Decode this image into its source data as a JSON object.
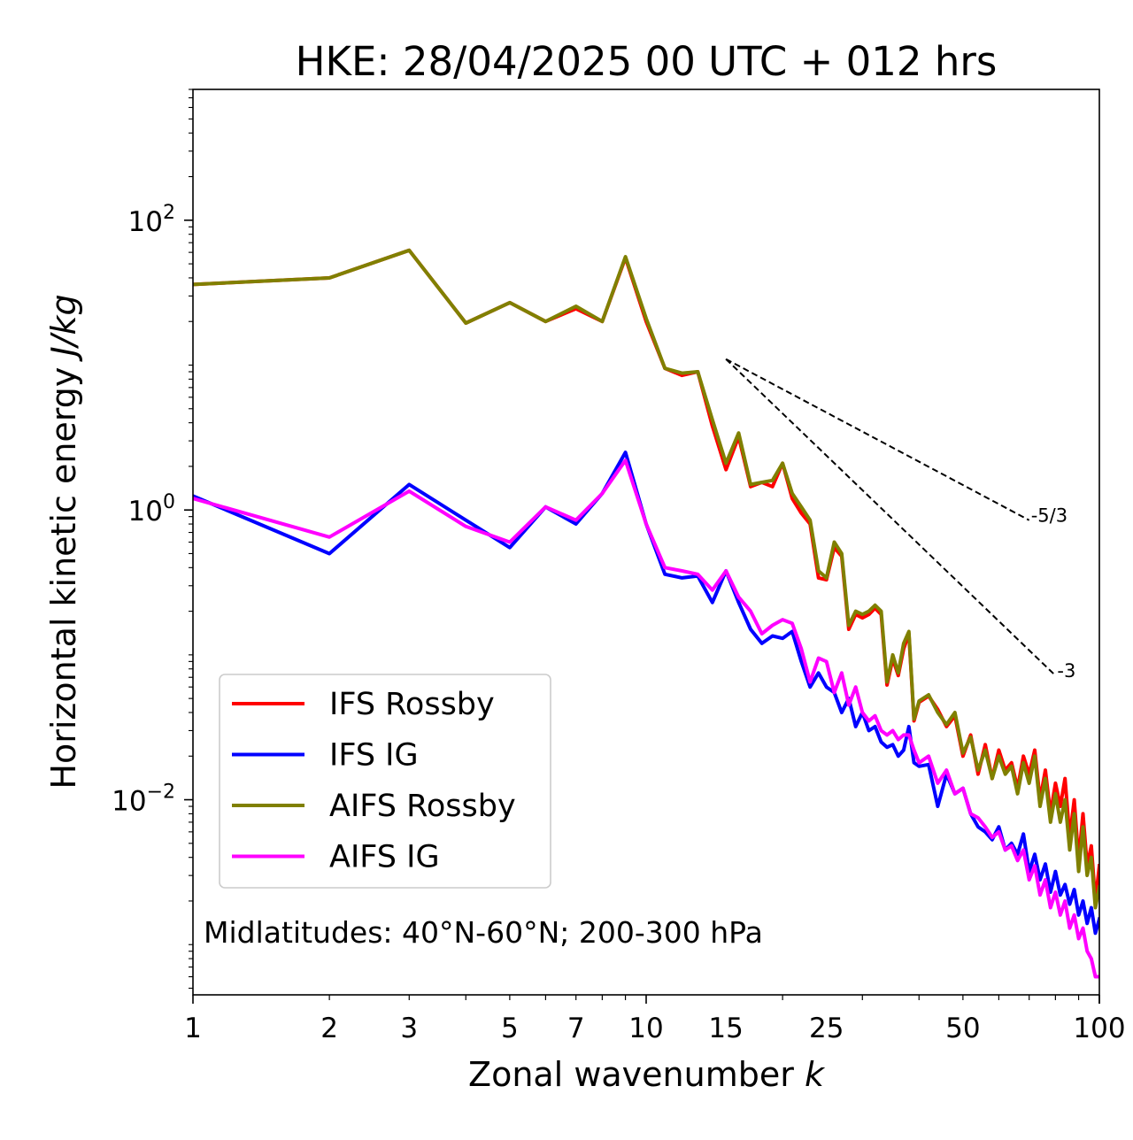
{
  "chart_data": {
    "type": "line",
    "title": "HKE: 28/04/2025 00 UTC + 012 hrs",
    "xlabel": "Zonal wavenumber",
    "xlabel_var": "k",
    "ylabel": "Horizontal kinetic energy",
    "ylabel_unit": "J/kg",
    "xscale": "log",
    "yscale": "log",
    "xlim": [
      1,
      100
    ],
    "ylim": [
      0.00045,
      800
    ],
    "x_ticks": [
      1,
      2,
      3,
      5,
      7,
      10,
      15,
      25,
      50,
      100
    ],
    "x_tick_labels": [
      "1",
      "2",
      "3",
      "5",
      "7",
      "10",
      "15",
      "25",
      "50",
      "100"
    ],
    "y_ticks": [
      {
        "value": 0.01,
        "base": "10",
        "exp": "−2"
      },
      {
        "value": 1,
        "base": "10",
        "exp": "0"
      },
      {
        "value": 100,
        "base": "10",
        "exp": "2"
      }
    ],
    "legend": {
      "position": "lower-left"
    },
    "grid": false,
    "annotation": "Midlatitudes: 40°N-60°N; 200-300 hPa",
    "reference_lines": [
      {
        "label": "-5/3",
        "x": [
          15,
          70
        ],
        "y": [
          11.0,
          0.85
        ]
      },
      {
        "label": "-3",
        "x": [
          15,
          80
        ],
        "y": [
          11.0,
          0.072
        ]
      }
    ],
    "series": [
      {
        "name": "IFS Rossby",
        "color": "#ff0000",
        "x": [
          1,
          2,
          3,
          4,
          5,
          6,
          7,
          8,
          9,
          10,
          11,
          12,
          13,
          14,
          15,
          16,
          17,
          18,
          19,
          20,
          21,
          22,
          23,
          24,
          25,
          26,
          27,
          28,
          29,
          30,
          31,
          32,
          33,
          34,
          35,
          36,
          37,
          38,
          39,
          40,
          42,
          44,
          46,
          48,
          50,
          52,
          54,
          56,
          58,
          60,
          62,
          64,
          66,
          68,
          70,
          72,
          74,
          76,
          78,
          80,
          82,
          84,
          86,
          88,
          90,
          92,
          94,
          96,
          98,
          100
        ],
        "y": [
          36,
          40,
          62,
          19.5,
          27,
          20,
          24.5,
          20,
          55,
          20,
          9.5,
          8.5,
          9,
          3.8,
          1.9,
          3.2,
          1.45,
          1.55,
          1.45,
          2.1,
          1.2,
          0.95,
          0.8,
          0.34,
          0.33,
          0.55,
          0.48,
          0.15,
          0.19,
          0.18,
          0.19,
          0.21,
          0.19,
          0.062,
          0.094,
          0.072,
          0.11,
          0.14,
          0.035,
          0.047,
          0.052,
          0.042,
          0.032,
          0.038,
          0.02,
          0.028,
          0.015,
          0.024,
          0.014,
          0.022,
          0.016,
          0.018,
          0.012,
          0.02,
          0.015,
          0.022,
          0.01,
          0.016,
          0.008,
          0.013,
          0.009,
          0.014,
          0.0055,
          0.01,
          0.0038,
          0.008,
          0.0035,
          0.0048,
          0.002,
          0.0035
        ]
      },
      {
        "name": "IFS IG",
        "color": "#0000ff",
        "x": [
          1,
          2,
          3,
          4,
          5,
          6,
          7,
          8,
          9,
          10,
          11,
          12,
          13,
          14,
          15,
          16,
          17,
          18,
          19,
          20,
          21,
          22,
          23,
          24,
          25,
          26,
          27,
          28,
          29,
          30,
          31,
          32,
          33,
          34,
          35,
          36,
          37,
          38,
          39,
          40,
          42,
          44,
          46,
          48,
          50,
          52,
          54,
          56,
          58,
          60,
          62,
          64,
          66,
          68,
          70,
          72,
          74,
          76,
          78,
          80,
          82,
          84,
          86,
          88,
          90,
          92,
          94,
          96,
          98,
          100
        ],
        "y": [
          1.25,
          0.5,
          1.5,
          0.85,
          0.55,
          1.05,
          0.8,
          1.3,
          2.5,
          0.8,
          0.36,
          0.34,
          0.35,
          0.23,
          0.38,
          0.23,
          0.15,
          0.12,
          0.135,
          0.13,
          0.145,
          0.09,
          0.06,
          0.075,
          0.06,
          0.055,
          0.04,
          0.05,
          0.032,
          0.04,
          0.03,
          0.032,
          0.025,
          0.023,
          0.024,
          0.02,
          0.022,
          0.032,
          0.018,
          0.017,
          0.0175,
          0.009,
          0.015,
          0.011,
          0.012,
          0.008,
          0.0065,
          0.006,
          0.0053,
          0.0065,
          0.0045,
          0.005,
          0.0042,
          0.0058,
          0.0032,
          0.0042,
          0.0028,
          0.0036,
          0.0023,
          0.0032,
          0.0022,
          0.0026,
          0.0019,
          0.0024,
          0.0016,
          0.002,
          0.0014,
          0.0018,
          0.0012,
          0.0015
        ]
      },
      {
        "name": "AIFS Rossby",
        "color": "#808000",
        "x": [
          1,
          2,
          3,
          4,
          5,
          6,
          7,
          8,
          9,
          10,
          11,
          12,
          13,
          14,
          15,
          16,
          17,
          18,
          19,
          20,
          21,
          22,
          23,
          24,
          25,
          26,
          27,
          28,
          29,
          30,
          31,
          32,
          33,
          34,
          35,
          36,
          37,
          38,
          39,
          40,
          42,
          44,
          46,
          48,
          50,
          52,
          54,
          56,
          58,
          60,
          62,
          64,
          66,
          68,
          70,
          72,
          74,
          76,
          78,
          80,
          82,
          84,
          86,
          88,
          90,
          92,
          94,
          96,
          98,
          100
        ],
        "y": [
          36,
          40,
          62,
          19.5,
          27,
          20,
          25.5,
          20,
          56,
          21,
          9.5,
          8.8,
          9,
          4.2,
          2.1,
          3.4,
          1.5,
          1.55,
          1.6,
          2.1,
          1.3,
          1.05,
          0.85,
          0.38,
          0.34,
          0.6,
          0.5,
          0.16,
          0.2,
          0.19,
          0.2,
          0.22,
          0.2,
          0.065,
          0.1,
          0.075,
          0.12,
          0.145,
          0.036,
          0.048,
          0.053,
          0.04,
          0.033,
          0.04,
          0.021,
          0.027,
          0.016,
          0.022,
          0.014,
          0.02,
          0.015,
          0.017,
          0.011,
          0.018,
          0.013,
          0.02,
          0.009,
          0.014,
          0.007,
          0.011,
          0.007,
          0.01,
          0.0045,
          0.008,
          0.0032,
          0.0065,
          0.003,
          0.004,
          0.0018,
          0.0025
        ]
      },
      {
        "name": "AIFS IG",
        "color": "#ff00ff",
        "x": [
          1,
          2,
          3,
          4,
          5,
          6,
          7,
          8,
          9,
          10,
          11,
          12,
          13,
          14,
          15,
          16,
          17,
          18,
          19,
          20,
          21,
          22,
          23,
          24,
          25,
          26,
          27,
          28,
          29,
          30,
          31,
          32,
          33,
          34,
          35,
          36,
          37,
          38,
          39,
          40,
          42,
          44,
          46,
          48,
          50,
          52,
          54,
          56,
          58,
          60,
          62,
          64,
          66,
          68,
          70,
          72,
          74,
          76,
          78,
          80,
          82,
          84,
          86,
          88,
          90,
          92,
          94,
          96,
          98,
          100
        ],
        "y": [
          1.2,
          0.65,
          1.35,
          0.77,
          0.6,
          1.05,
          0.85,
          1.3,
          2.2,
          0.8,
          0.4,
          0.38,
          0.36,
          0.28,
          0.38,
          0.25,
          0.2,
          0.14,
          0.16,
          0.175,
          0.165,
          0.11,
          0.065,
          0.095,
          0.09,
          0.055,
          0.075,
          0.045,
          0.06,
          0.04,
          0.035,
          0.038,
          0.03,
          0.028,
          0.03,
          0.026,
          0.028,
          0.028,
          0.022,
          0.018,
          0.02,
          0.013,
          0.016,
          0.011,
          0.012,
          0.008,
          0.0075,
          0.0065,
          0.0055,
          0.006,
          0.0045,
          0.0048,
          0.0038,
          0.0045,
          0.0028,
          0.0035,
          0.0022,
          0.0028,
          0.0018,
          0.0023,
          0.0016,
          0.002,
          0.0013,
          0.0016,
          0.0011,
          0.0013,
          0.0009,
          0.0008,
          0.0006,
          0.0006
        ]
      }
    ]
  }
}
